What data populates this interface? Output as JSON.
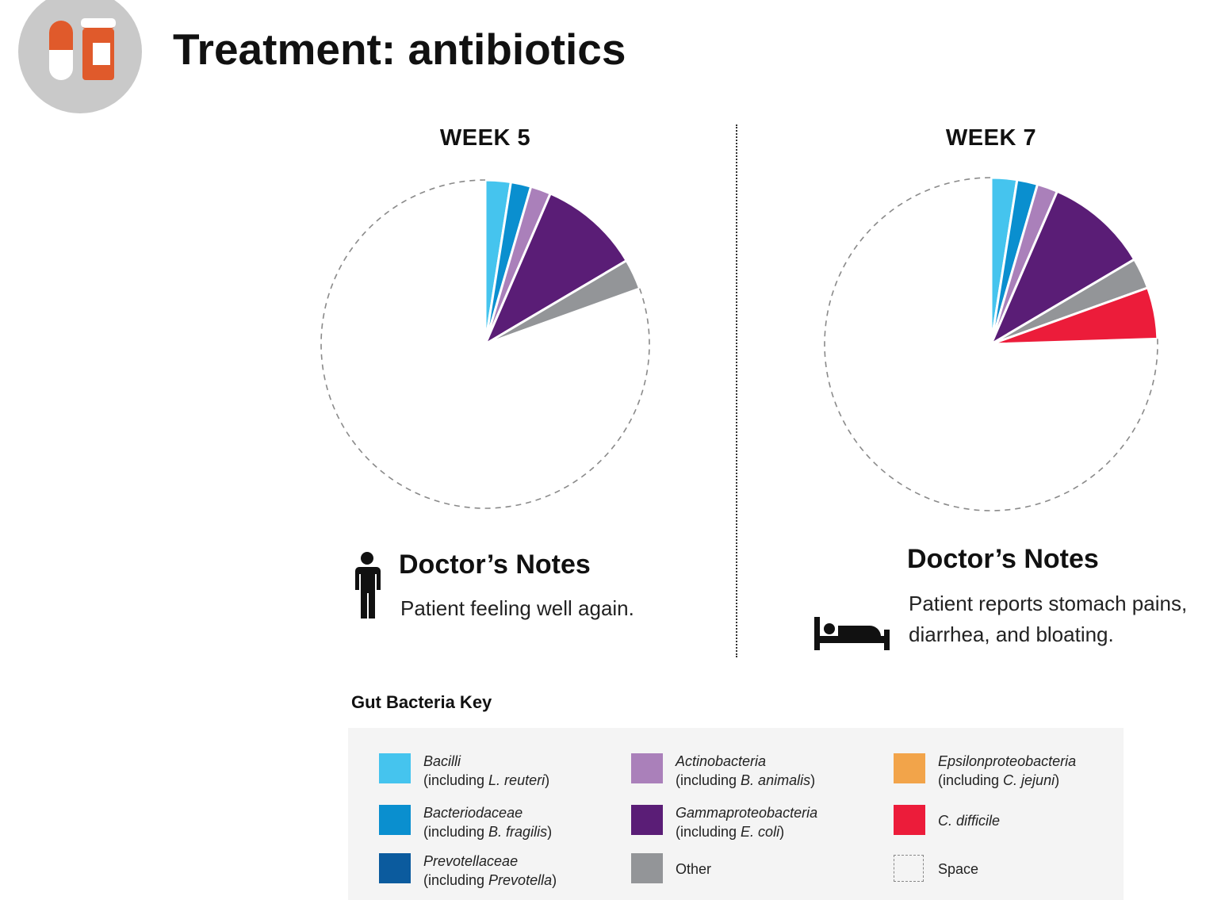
{
  "header": {
    "title": "Treatment: antibiotics",
    "icon": "pill-bottle-icon",
    "icon_bg": "#c9c9c9",
    "icon_color": "#e05a2b"
  },
  "divider_style": "dotted",
  "chart_data": [
    {
      "type": "pie",
      "title": "WEEK 5",
      "slices": [
        {
          "category": "Bacilli",
          "value": 2.5,
          "color": "#45c4ee"
        },
        {
          "category": "Bacteriodaceae",
          "value": 2.0,
          "color": "#0a8fcf"
        },
        {
          "category": "Actinobacteria",
          "value": 2.0,
          "color": "#aa80ba"
        },
        {
          "category": "Gammaproteobacteria",
          "value": 10.0,
          "color": "#5a1d76"
        },
        {
          "category": "Other",
          "value": 3.0,
          "color": "#939598"
        },
        {
          "category": "Space",
          "value": 80.5,
          "color": "none"
        }
      ]
    },
    {
      "type": "pie",
      "title": "WEEK 7",
      "slices": [
        {
          "category": "Bacilli",
          "value": 2.5,
          "color": "#45c4ee"
        },
        {
          "category": "Bacteriodaceae",
          "value": 2.0,
          "color": "#0a8fcf"
        },
        {
          "category": "Actinobacteria",
          "value": 2.0,
          "color": "#aa80ba"
        },
        {
          "category": "Gammaproteobacteria",
          "value": 10.0,
          "color": "#5a1d76"
        },
        {
          "category": "Other",
          "value": 3.0,
          "color": "#939598"
        },
        {
          "category": "C. difficile",
          "value": 5.0,
          "color": "#ec1c3a"
        },
        {
          "category": "Space",
          "value": 75.5,
          "color": "none"
        }
      ]
    }
  ],
  "notes": [
    {
      "title": "Doctor’s Notes",
      "text_lines": [
        "Patient feeling well again."
      ],
      "icon": "standing-person-icon"
    },
    {
      "title": "Doctor’s Notes",
      "text_lines": [
        "Patient reports stomach pains,",
        "diarrhea, and bloating."
      ],
      "icon": "person-in-bed-icon"
    }
  ],
  "legend": {
    "title": "Gut Bacteria Key",
    "items": [
      {
        "name": "Bacilli",
        "prefix": "(including ",
        "example": "L. reuteri",
        "suffix": ")",
        "color": "#45c4ee"
      },
      {
        "name": "Bacteriodaceae",
        "prefix": "(including ",
        "example": "B. fragilis",
        "suffix": ")",
        "color": "#0a8fcf"
      },
      {
        "name": "Prevotellaceae",
        "prefix": "(including ",
        "example": "Prevotella",
        "suffix": ")",
        "color": "#0b5b9e"
      },
      {
        "name": "Actinobacteria",
        "prefix": "(including ",
        "example": "B. animalis",
        "suffix": ")",
        "color": "#aa80ba"
      },
      {
        "name": "Gammaproteobacteria",
        "prefix": "(including ",
        "example": "E. coli",
        "suffix": ")",
        "color": "#5a1d76"
      },
      {
        "name": "Other",
        "prefix": "",
        "example": "",
        "suffix": "",
        "color": "#939598"
      },
      {
        "name": "Epsilonproteobacteria",
        "prefix": "(including ",
        "example": "C. jejuni",
        "suffix": ")",
        "color": "#f2a44a"
      },
      {
        "name": "C. difficile",
        "prefix": "",
        "example": "",
        "suffix": "",
        "color": "#ec1c3a"
      },
      {
        "name": "Space",
        "prefix": "",
        "example": "",
        "suffix": "",
        "color": "none"
      }
    ]
  }
}
